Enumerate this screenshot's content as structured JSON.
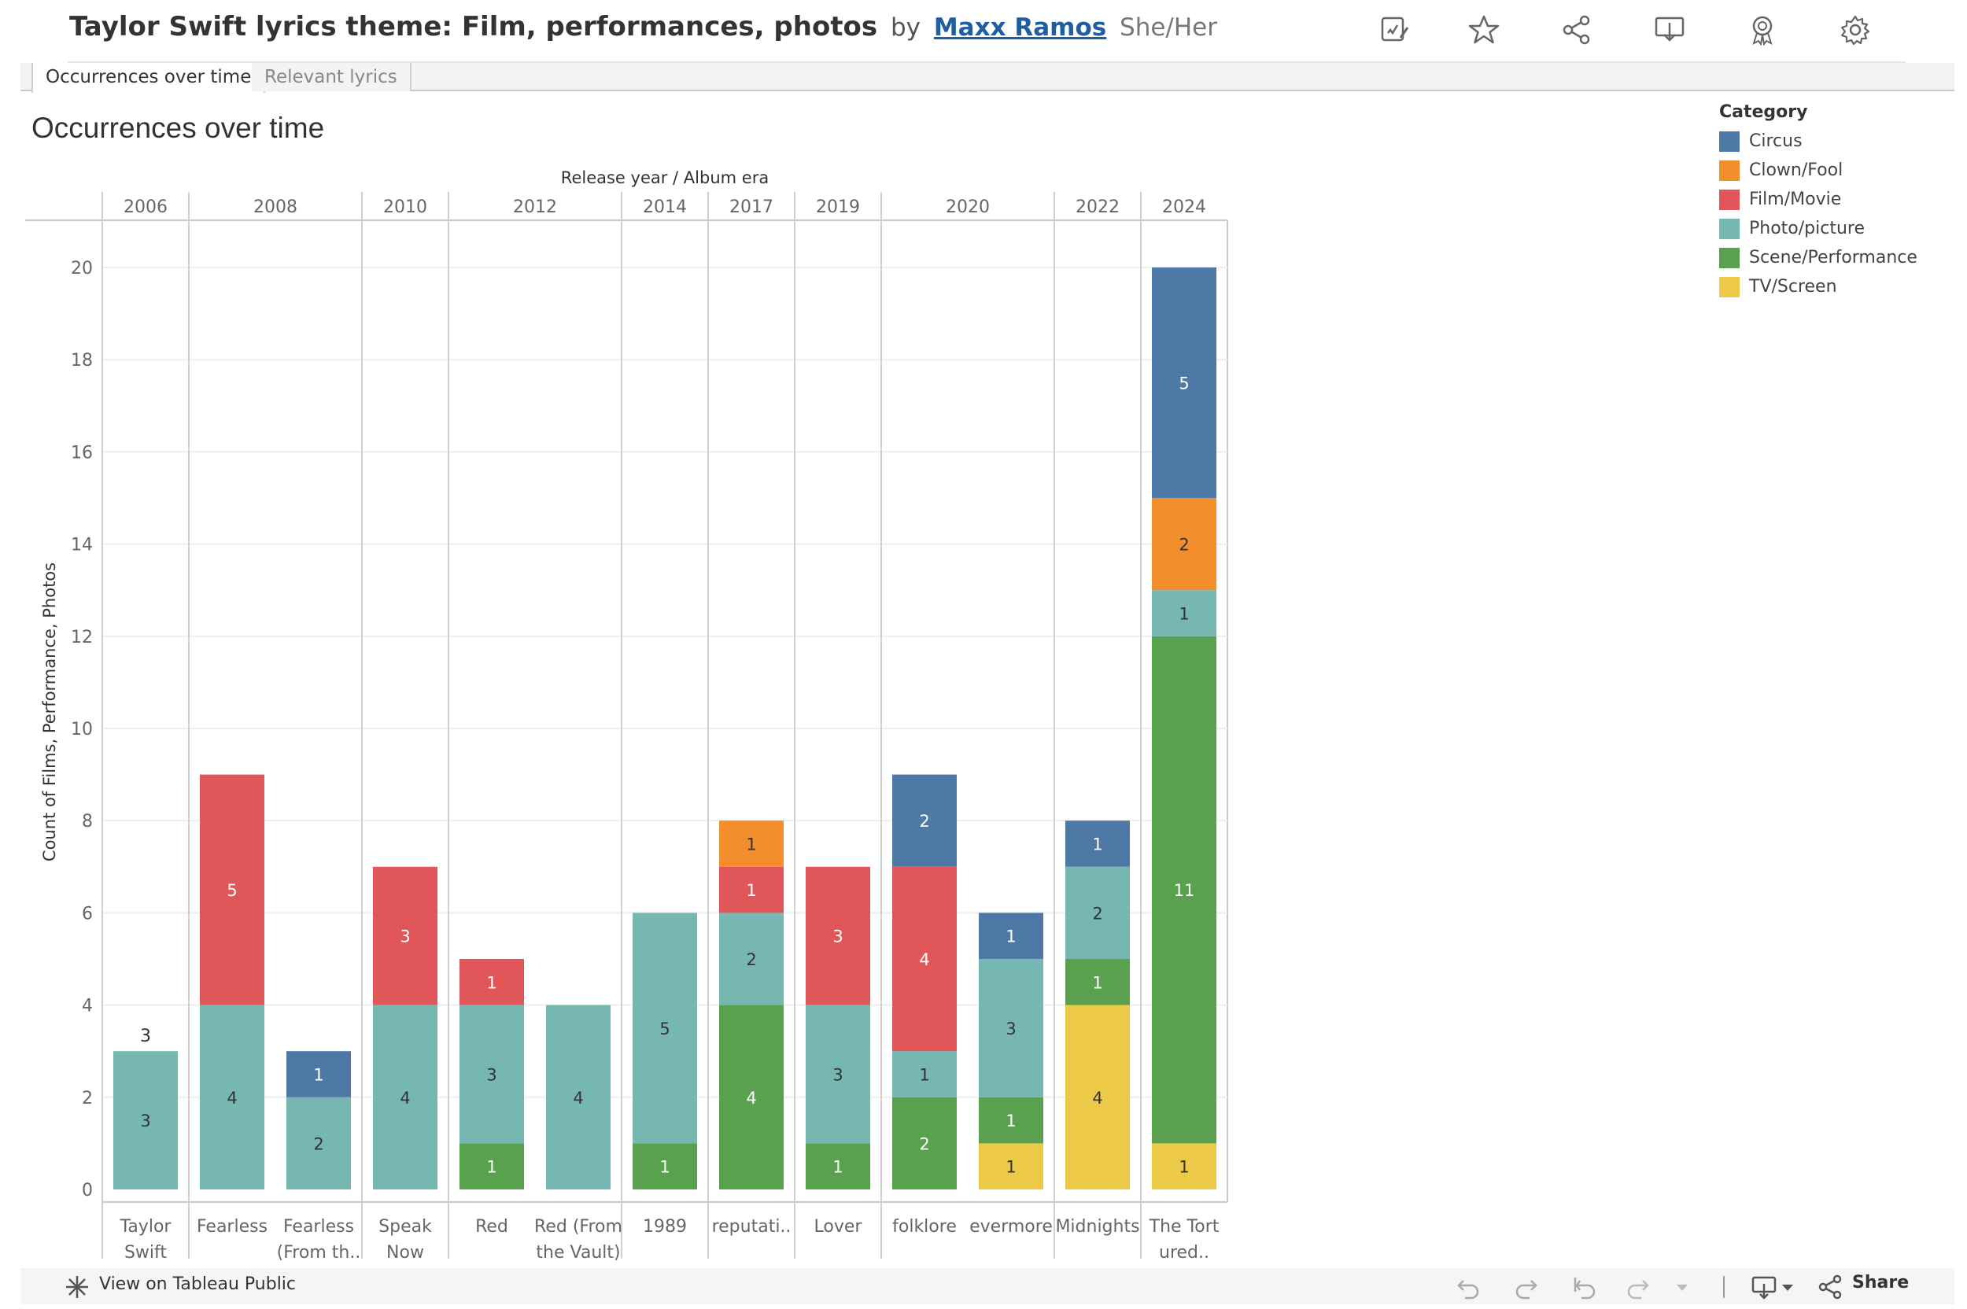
{
  "header": {
    "title": "Taylor Swift lyrics theme: Film, performances, photos",
    "by": "by",
    "author": "Maxx Ramos",
    "pronouns": "She/Her"
  },
  "header_icons": [
    "edit-icon",
    "star-icon",
    "share-icon",
    "download-icon",
    "badge-icon",
    "gear-icon"
  ],
  "tabs": [
    {
      "label": "Occurrences over time",
      "active": true
    },
    {
      "label": "Relevant lyrics",
      "active": false
    }
  ],
  "sheet_title": "Occurrences over time",
  "footer": {
    "view_label": "View on Tableau Public",
    "share_label": "Share"
  },
  "chart_data": {
    "type": "bar",
    "stacked": true,
    "title": "",
    "xlabel": "Release year / Album era",
    "ylabel": "Count of Films, Performance, Photos",
    "ylim": [
      0,
      21
    ],
    "yticks": [
      0,
      2,
      4,
      6,
      8,
      10,
      12,
      14,
      16,
      18,
      20
    ],
    "grid": true,
    "legend": {
      "title": "Category",
      "position": "right"
    },
    "year_groups": [
      {
        "year": "2006",
        "count": 1
      },
      {
        "year": "2008",
        "count": 2
      },
      {
        "year": "2010",
        "count": 1
      },
      {
        "year": "2012",
        "count": 2
      },
      {
        "year": "2014",
        "count": 1
      },
      {
        "year": "2017",
        "count": 1
      },
      {
        "year": "2019",
        "count": 1
      },
      {
        "year": "2020",
        "count": 2
      },
      {
        "year": "2022",
        "count": 1
      },
      {
        "year": "2024",
        "count": 1
      }
    ],
    "categories": [
      [
        "Taylor",
        "Swift"
      ],
      [
        "Fearless"
      ],
      [
        "Fearless",
        "(From th.."
      ],
      [
        "Speak",
        "Now"
      ],
      [
        "Red"
      ],
      [
        "Red (From",
        "the Vault)"
      ],
      [
        "1989"
      ],
      [
        "reputati.."
      ],
      [
        "Lover"
      ],
      [
        "folklore"
      ],
      [
        "evermore"
      ],
      [
        "Midnights"
      ],
      [
        "The Tort",
        "ured.."
      ]
    ],
    "series": [
      {
        "name": "TV/Screen",
        "color": "#EDC948",
        "label_color": "#333333",
        "values": [
          0,
          0,
          0,
          0,
          0,
          0,
          0,
          0,
          0,
          0,
          1,
          4,
          1
        ]
      },
      {
        "name": "Scene/Performance",
        "color": "#59A14F",
        "label_color": "#ffffff",
        "values": [
          0,
          0,
          0,
          0,
          1,
          0,
          1,
          4,
          1,
          2,
          1,
          1,
          11
        ]
      },
      {
        "name": "Photo/picture",
        "color": "#76B7B2",
        "label_color": "#333333",
        "values": [
          3,
          4,
          2,
          4,
          3,
          4,
          5,
          2,
          3,
          1,
          3,
          2,
          1
        ]
      },
      {
        "name": "Film/Movie",
        "color": "#E15759",
        "label_color": "#ffffff",
        "values": [
          0,
          5,
          0,
          3,
          1,
          0,
          0,
          1,
          3,
          4,
          0,
          0,
          0
        ]
      },
      {
        "name": "Clown/Fool",
        "color": "#F28E2B",
        "label_color": "#333333",
        "values": [
          0,
          0,
          0,
          0,
          0,
          0,
          0,
          1,
          0,
          0,
          0,
          0,
          2
        ]
      },
      {
        "name": "Circus",
        "color": "#4E79A7",
        "label_color": "#ffffff",
        "values": [
          0,
          0,
          1,
          0,
          0,
          0,
          0,
          0,
          0,
          2,
          1,
          1,
          5
        ]
      }
    ],
    "legend_order": [
      "Circus",
      "Clown/Fool",
      "Film/Movie",
      "Photo/picture",
      "Scene/Performance",
      "TV/Screen"
    ],
    "total_labels": [
      {
        "index": 0,
        "value": 3
      }
    ]
  }
}
